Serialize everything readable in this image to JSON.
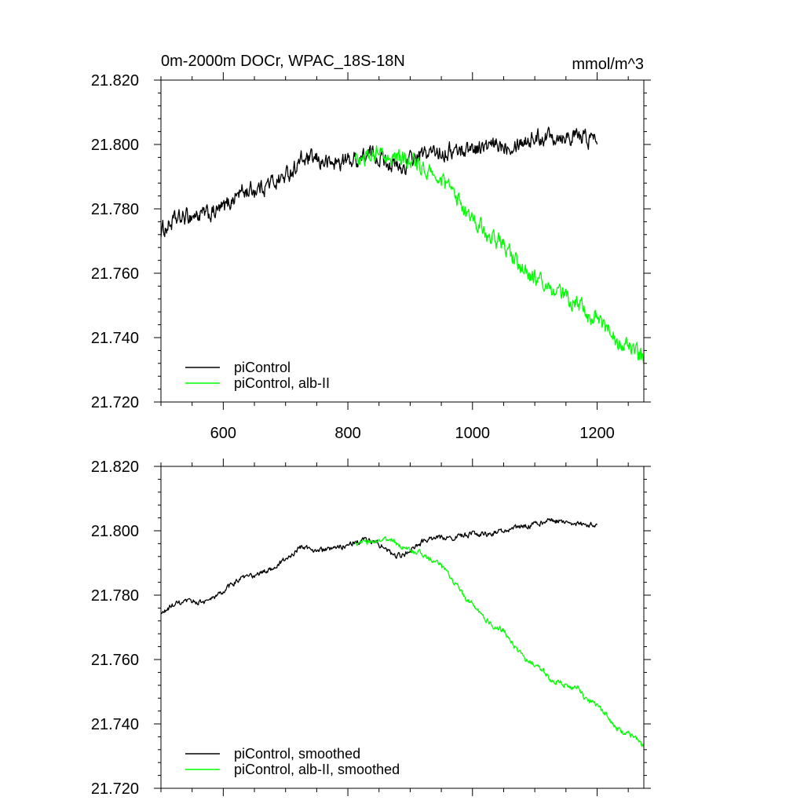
{
  "chart_data": [
    {
      "type": "line",
      "title": "0m-2000m DOCr, WPAC_18S-18N",
      "units": "mmol/m^3",
      "xlim": [
        500,
        1275
      ],
      "ylim": [
        21.72,
        21.82
      ],
      "x_ticks": [
        600,
        800,
        1000,
        1200
      ],
      "x_tick_labels": [
        "600",
        "800",
        "1000",
        "1200"
      ],
      "y_ticks": [
        21.72,
        21.74,
        21.76,
        21.78,
        21.8,
        21.82
      ],
      "y_tick_labels": [
        "21.720",
        "21.740",
        "21.760",
        "21.780",
        "21.800",
        "21.820"
      ],
      "grid": false,
      "legend_position": "bottom-left",
      "series": [
        {
          "name": "piControl",
          "color": "#000000",
          "x": [
            500,
            520,
            550,
            575,
            600,
            625,
            650,
            675,
            700,
            725,
            750,
            775,
            800,
            825,
            840,
            855,
            870,
            885,
            900,
            925,
            950,
            975,
            1000,
            1025,
            1050,
            1075,
            1100,
            1125,
            1150,
            1175,
            1200
          ],
          "y": [
            21.773,
            21.776,
            21.778,
            21.778,
            21.78,
            21.785,
            21.786,
            21.788,
            21.79,
            21.795,
            21.795,
            21.794,
            21.795,
            21.796,
            21.797,
            21.796,
            21.794,
            21.792,
            21.795,
            21.797,
            21.798,
            21.798,
            21.799,
            21.799,
            21.8,
            21.801,
            21.802,
            21.803,
            21.803,
            21.802,
            21.802
          ],
          "noise": 0.0022
        },
        {
          "name": "piControl, alb-II",
          "color": "#00ff00",
          "x": [
            812,
            825,
            840,
            855,
            870,
            885,
            900,
            915,
            930,
            945,
            960,
            975,
            990,
            1005,
            1020,
            1035,
            1050,
            1065,
            1080,
            1095,
            1110,
            1125,
            1140,
            1155,
            1170,
            1185,
            1200,
            1215,
            1230,
            1245,
            1260,
            1275
          ],
          "y": [
            21.796,
            21.796,
            21.797,
            21.797,
            21.797,
            21.795,
            21.795,
            21.793,
            21.791,
            21.79,
            21.787,
            21.783,
            21.779,
            21.776,
            21.773,
            21.77,
            21.769,
            21.765,
            21.761,
            21.759,
            21.757,
            21.754,
            21.753,
            21.752,
            21.751,
            21.747,
            21.746,
            21.743,
            21.739,
            21.737,
            21.736,
            21.733
          ],
          "noise": 0.0022
        }
      ]
    },
    {
      "type": "line",
      "title": "",
      "xlim": [
        500,
        1275
      ],
      "ylim": [
        21.72,
        21.82
      ],
      "x_ticks": [
        600,
        800,
        1000,
        1200
      ],
      "x_tick_labels": [],
      "y_ticks": [
        21.72,
        21.74,
        21.76,
        21.78,
        21.8,
        21.82
      ],
      "y_tick_labels": [
        "21.720",
        "21.740",
        "21.760",
        "21.780",
        "21.800",
        "21.820"
      ],
      "grid": false,
      "legend_position": "bottom-left",
      "series": [
        {
          "name": "piControl, smoothed",
          "color": "#000000",
          "x": [
            500,
            520,
            550,
            575,
            600,
            625,
            650,
            675,
            700,
            725,
            750,
            775,
            800,
            825,
            840,
            855,
            870,
            885,
            900,
            925,
            950,
            975,
            1000,
            1025,
            1050,
            1075,
            1100,
            1125,
            1150,
            1175,
            1200
          ],
          "y": [
            21.774,
            21.777,
            21.778,
            21.778,
            21.781,
            21.785,
            21.786,
            21.788,
            21.791,
            21.795,
            21.794,
            21.794,
            21.796,
            21.797,
            21.797,
            21.795,
            21.793,
            21.792,
            21.794,
            21.797,
            21.798,
            21.798,
            21.799,
            21.799,
            21.8,
            21.801,
            21.802,
            21.803,
            21.803,
            21.802,
            21.802
          ],
          "noise": 0.0007
        },
        {
          "name": "piControl, alb-II, smoothed",
          "color": "#00ff00",
          "x": [
            812,
            825,
            840,
            855,
            870,
            885,
            900,
            915,
            930,
            945,
            960,
            975,
            990,
            1005,
            1020,
            1035,
            1050,
            1065,
            1080,
            1095,
            1110,
            1125,
            1140,
            1155,
            1170,
            1185,
            1200,
            1215,
            1230,
            1245,
            1260,
            1275
          ],
          "y": [
            21.796,
            21.796,
            21.797,
            21.797,
            21.797,
            21.795,
            21.794,
            21.793,
            21.791,
            21.79,
            21.787,
            21.783,
            21.779,
            21.776,
            21.773,
            21.77,
            21.769,
            21.765,
            21.761,
            21.759,
            21.757,
            21.754,
            21.753,
            21.752,
            21.751,
            21.747,
            21.746,
            21.743,
            21.739,
            21.737,
            21.736,
            21.733
          ],
          "noise": 0.0007
        }
      ]
    }
  ]
}
